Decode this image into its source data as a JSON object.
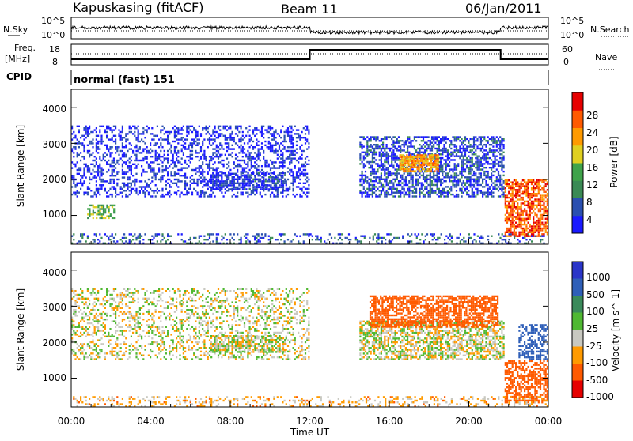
{
  "header": {
    "station": "Kapuskasing (fitACF)",
    "beam": "Beam 11",
    "date": "06/Jan/2011"
  },
  "noise_panel": {
    "left_label": "N.Sky",
    "right_label": "N.Search",
    "left_ticks": [
      "10^5",
      "10^0"
    ],
    "right_ticks": [
      "10^5",
      "10^0"
    ]
  },
  "freq_panel": {
    "left_label_1": "Freq.",
    "left_label_2": "[MHz]",
    "right_label": "Nave",
    "left_ticks": [
      "18",
      "8"
    ],
    "right_ticks": [
      "60",
      "0"
    ]
  },
  "cpid": {
    "label": "CPID",
    "mode": "normal (fast) 151"
  },
  "colors": {
    "power_scale": [
      "#1a1aff",
      "#2a4fb0",
      "#3a8a55",
      "#3fa34a",
      "#e0d020",
      "#ff9a00",
      "#ff5a00",
      "#e60000"
    ],
    "velocity_scale": [
      "#2a35c8",
      "#2f5fb8",
      "#3a8a5a",
      "#4fb832",
      "#c8c8c0",
      "#ff9a00",
      "#ff5a00",
      "#e60000"
    ],
    "background": "#ffffff"
  },
  "chart_data": [
    {
      "type": "heatmap",
      "name": "power",
      "ylabel": "Slant Range [km]",
      "y_ticks": [
        "1000",
        "2000",
        "3000",
        "4000"
      ],
      "ylim": [
        200,
        4500
      ],
      "xlim": [
        "00:00",
        "24:00"
      ],
      "colorbar_label": "Power [dB]",
      "colorbar_ticks": [
        "4",
        "8",
        "12",
        "16",
        "20",
        "24",
        "28"
      ],
      "colorbar_range": [
        0,
        32
      ],
      "regions": [
        {
          "t0": 0.0,
          "t1": 12.0,
          "r0": 1500,
          "r1": 3500,
          "level": 3,
          "density": 0.35
        },
        {
          "t0": 7.0,
          "t1": 10.8,
          "r0": 1700,
          "r1": 2200,
          "level": 4,
          "density": 0.6
        },
        {
          "t0": 14.5,
          "t1": 21.8,
          "r0": 1500,
          "r1": 3200,
          "level": 5,
          "density": 0.55
        },
        {
          "t0": 16.5,
          "t1": 18.5,
          "r0": 2200,
          "r1": 2700,
          "level": 22,
          "density": 0.8
        },
        {
          "t0": 21.8,
          "t1": 24.0,
          "r0": 400,
          "r1": 2000,
          "level": 26,
          "density": 0.7
        },
        {
          "t0": 0.0,
          "t1": 24.0,
          "r0": 200,
          "r1": 500,
          "level": 6,
          "density": 0.25
        },
        {
          "t0": 0.8,
          "t1": 2.2,
          "r0": 900,
          "r1": 1300,
          "level": 14,
          "density": 0.5
        }
      ]
    },
    {
      "type": "heatmap",
      "name": "velocity",
      "ylabel": "Slant Range [km]",
      "y_ticks": [
        "1000",
        "2000",
        "3000",
        "4000"
      ],
      "ylim": [
        200,
        4500
      ],
      "xlim": [
        "00:00",
        "24:00"
      ],
      "xlabel": "Time UT",
      "x_ticks": [
        "00:00",
        "04:00",
        "08:00",
        "12:00",
        "16:00",
        "20:00",
        "00:00"
      ],
      "colorbar_label": "Velocity [m s^-1]",
      "colorbar_ticks": [
        "1000",
        "500",
        "100",
        "25",
        "-25",
        "-100",
        "-500",
        "-1000"
      ],
      "regions": [
        {
          "t0": 0.0,
          "t1": 12.0,
          "r0": 1500,
          "r1": 3500,
          "level": 0,
          "density": 0.3
        },
        {
          "t0": 7.0,
          "t1": 10.8,
          "r0": 1700,
          "r1": 2200,
          "level": 0,
          "density": 0.6
        },
        {
          "t0": 14.5,
          "t1": 21.8,
          "r0": 1500,
          "r1": 2600,
          "level": 0,
          "density": 0.6
        },
        {
          "t0": 15.0,
          "t1": 21.5,
          "r0": 2400,
          "r1": 3300,
          "level": -300,
          "density": 0.65
        },
        {
          "t0": 21.8,
          "t1": 24.0,
          "r0": 300,
          "r1": 1500,
          "level": -400,
          "density": 0.6
        },
        {
          "t0": 22.5,
          "t1": 24.0,
          "r0": 1500,
          "r1": 2500,
          "level": 300,
          "density": 0.5
        },
        {
          "t0": 0.0,
          "t1": 24.0,
          "r0": 200,
          "r1": 500,
          "level": -50,
          "density": 0.25
        }
      ]
    }
  ]
}
